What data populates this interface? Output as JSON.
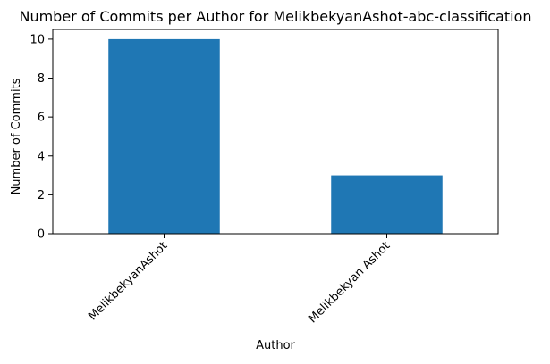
{
  "chart_data": {
    "type": "bar",
    "title": "Number of Commits per Author for MelikbekyanAshot-abc-classification",
    "xlabel": "Author",
    "ylabel": "Number of Commits",
    "categories": [
      "MelikbekyanAshot",
      "Melikbekyan Ashot"
    ],
    "values": [
      10,
      3
    ],
    "ylim": [
      0,
      10.5
    ],
    "yticks": [
      0,
      2,
      4,
      6,
      8,
      10
    ],
    "bar_color": "#1f77b4",
    "grid": false,
    "legend": "none"
  }
}
